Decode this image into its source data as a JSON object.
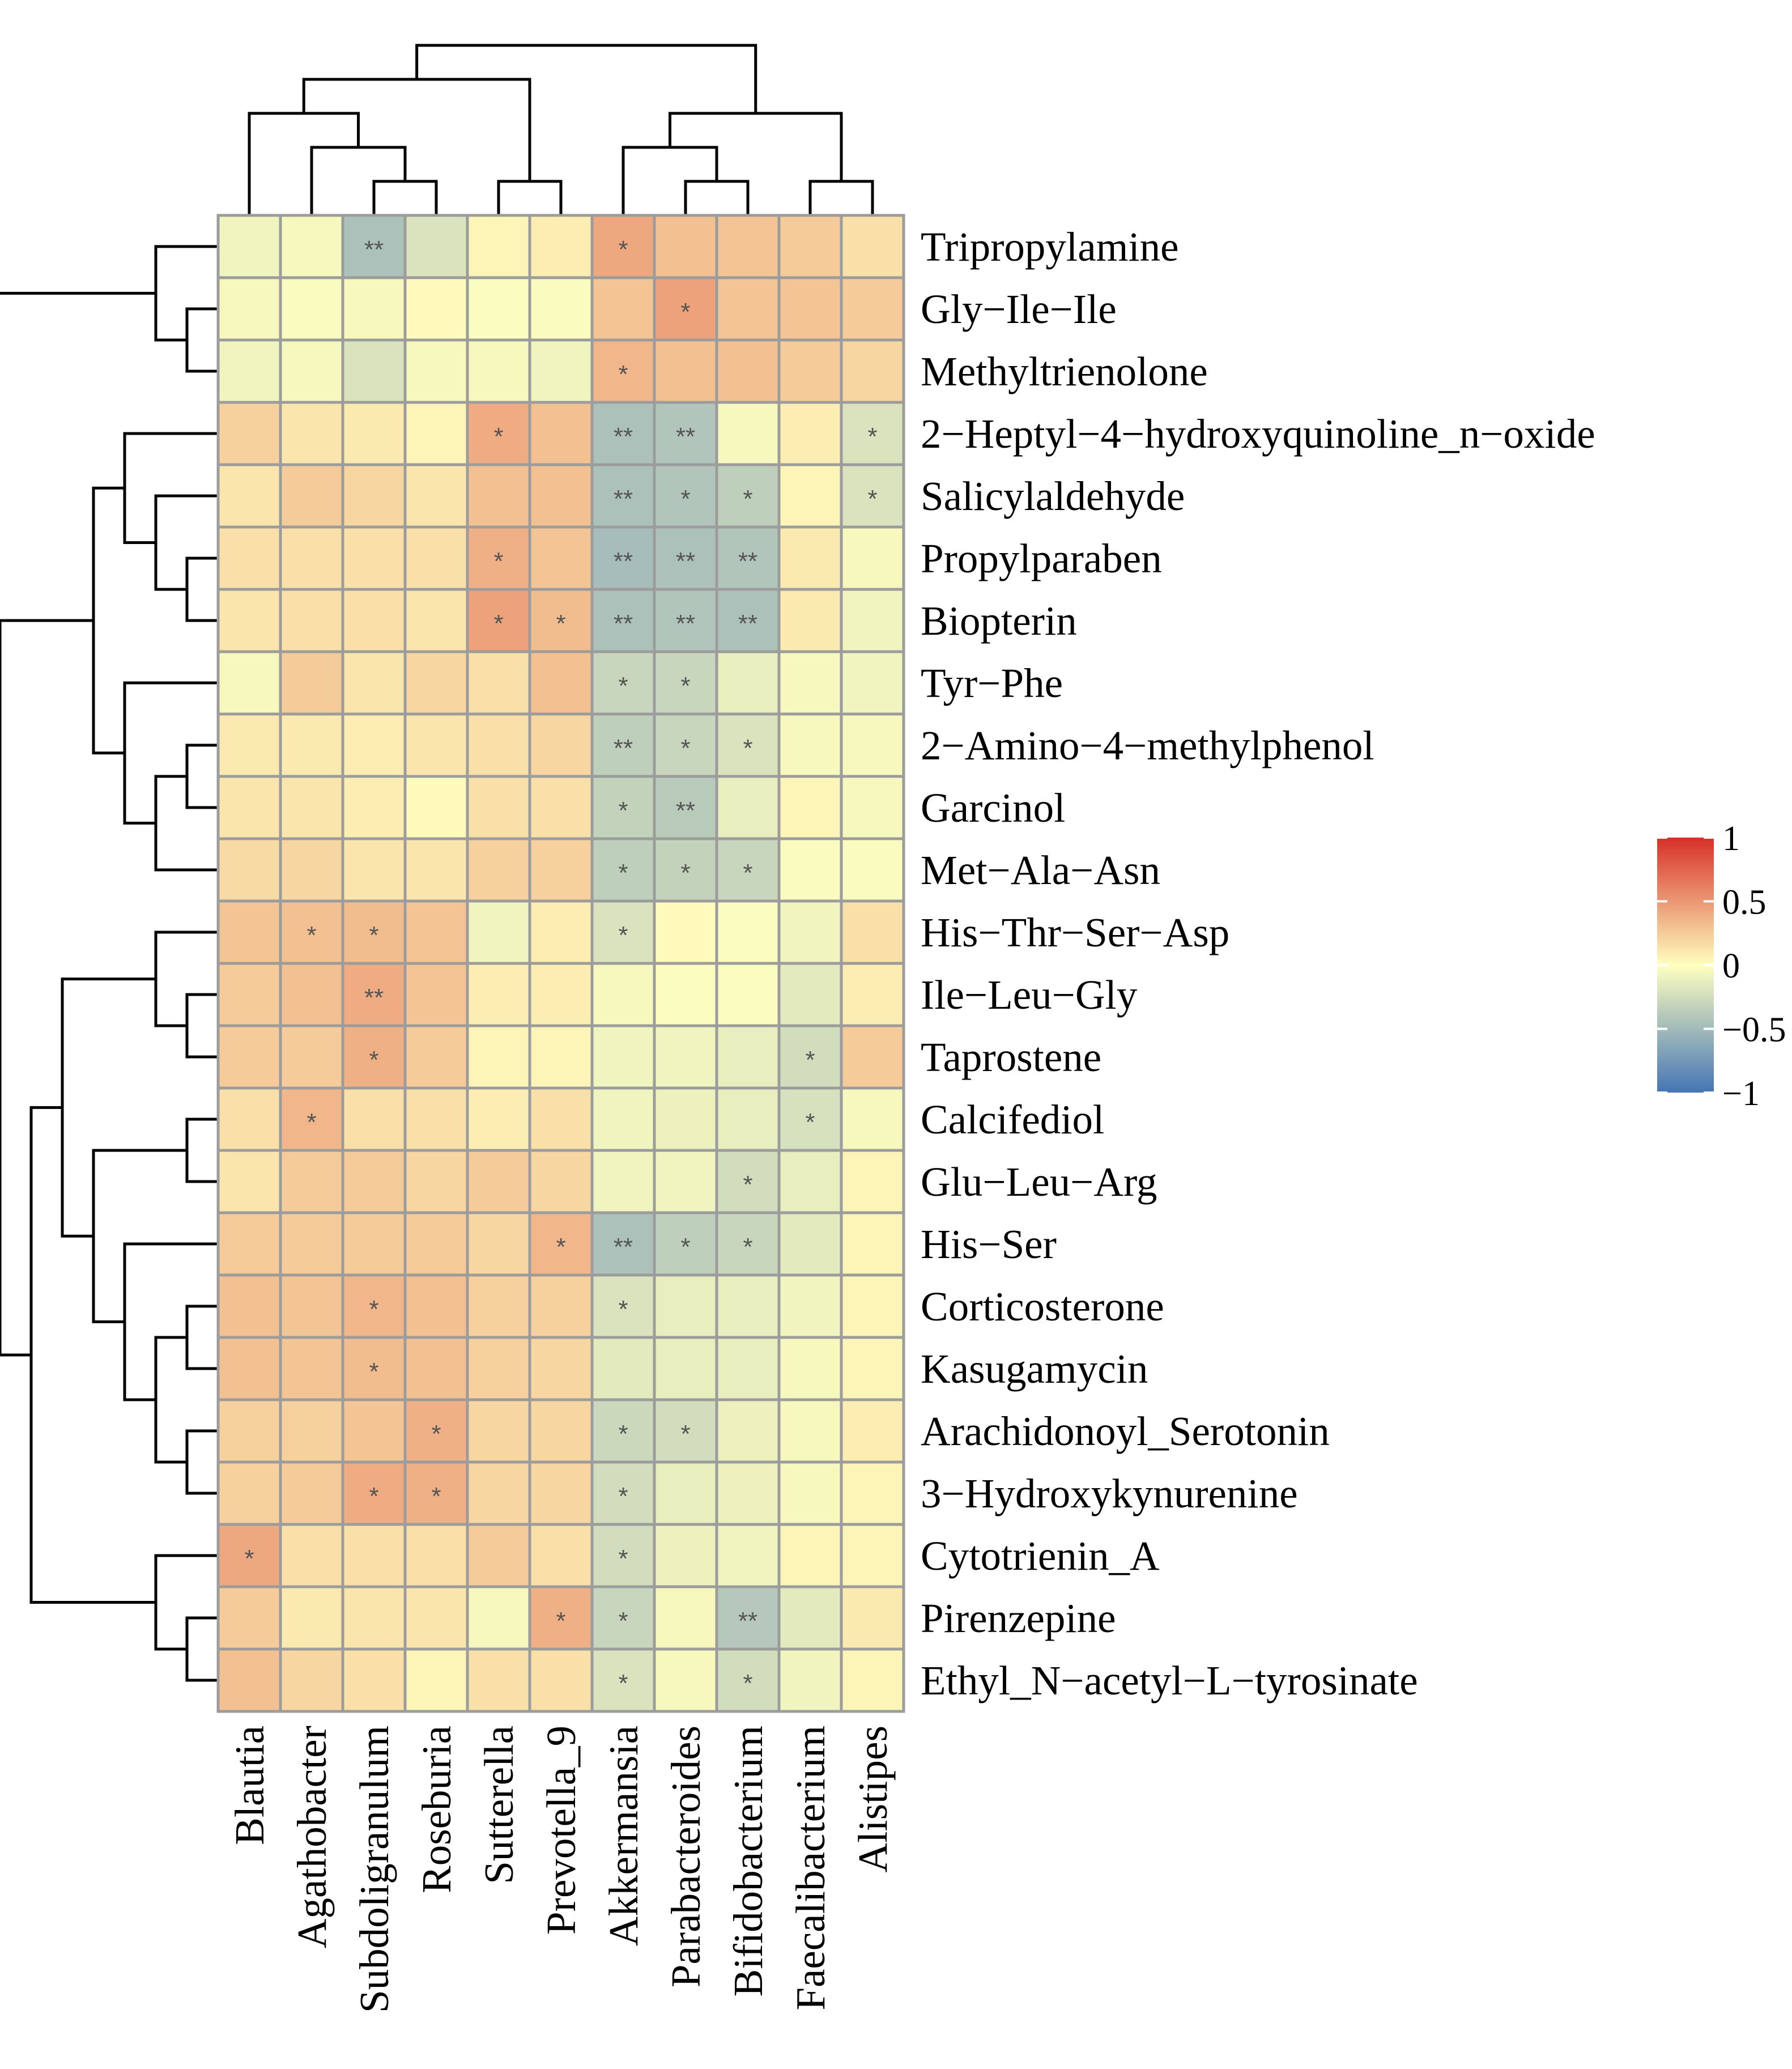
{
  "chart_data": {
    "type": "heatmap",
    "title": "",
    "columns": [
      "Blautia",
      "Agathobacter",
      "Subdoligranulum",
      "Roseburia",
      "Sutterella",
      "Prevotella_9",
      "Akkermansia",
      "Parabacteroides",
      "Bifidobacterium",
      "Faecalibacterium",
      "Alistipes"
    ],
    "rows": [
      "Tripropylamine",
      "Gly−Ile−Ile",
      "Methyltrienolone",
      "2−Heptyl−4−hydroxyquinoline_n−oxide",
      "Salicylaldehyde",
      "Propylparaben",
      "Biopterin",
      "Tyr−Phe",
      "2−Amino−4−methylphenol",
      "Garcinol",
      "Met−Ala−Asn",
      "His−Thr−Ser−Asp",
      "Ile−Leu−Gly",
      "Taprostene",
      "Calcifediol",
      "Glu−Leu−Arg",
      "His−Ser",
      "Corticosterone",
      "Kasugamycin",
      "Arachidonoyl_Serotonin",
      "3−Hydroxykynurenine",
      "Cytotrienin_A",
      "Pirenzepine",
      "Ethyl_N−acetyl−L−tyrosinate"
    ],
    "values": [
      [
        -0.08,
        -0.05,
        -0.45,
        -0.2,
        0.05,
        0.08,
        0.42,
        0.3,
        0.28,
        0.25,
        0.15
      ],
      [
        -0.05,
        -0.03,
        -0.05,
        0.02,
        -0.02,
        -0.03,
        0.28,
        0.45,
        0.28,
        0.28,
        0.25
      ],
      [
        -0.08,
        -0.05,
        -0.2,
        -0.05,
        -0.05,
        -0.08,
        0.35,
        0.3,
        0.3,
        0.25,
        0.2
      ],
      [
        0.22,
        0.12,
        0.1,
        0.05,
        0.4,
        0.3,
        -0.45,
        -0.42,
        -0.05,
        0.08,
        -0.2
      ],
      [
        0.12,
        0.25,
        0.2,
        0.12,
        0.3,
        0.3,
        -0.45,
        -0.42,
        -0.35,
        0.05,
        -0.2
      ],
      [
        0.15,
        0.15,
        0.15,
        0.15,
        0.38,
        0.28,
        -0.48,
        -0.45,
        -0.42,
        0.1,
        -0.05
      ],
      [
        0.12,
        0.15,
        0.15,
        0.12,
        0.45,
        0.32,
        -0.45,
        -0.42,
        -0.45,
        0.1,
        -0.08
      ],
      [
        -0.05,
        0.25,
        0.12,
        0.2,
        0.15,
        0.3,
        -0.3,
        -0.3,
        -0.12,
        -0.05,
        -0.08
      ],
      [
        0.1,
        0.1,
        0.08,
        0.12,
        0.15,
        0.2,
        -0.35,
        -0.3,
        -0.2,
        -0.05,
        -0.05
      ],
      [
        0.12,
        0.12,
        0.08,
        0.02,
        0.15,
        0.15,
        -0.32,
        -0.38,
        -0.12,
        0.05,
        -0.05
      ],
      [
        0.18,
        0.2,
        0.12,
        0.12,
        0.22,
        0.22,
        -0.35,
        -0.32,
        -0.3,
        -0.03,
        -0.03
      ],
      [
        0.28,
        0.3,
        0.32,
        0.28,
        -0.08,
        0.08,
        -0.2,
        0.02,
        -0.02,
        -0.08,
        0.15
      ],
      [
        0.25,
        0.3,
        0.4,
        0.28,
        0.08,
        0.08,
        -0.05,
        -0.02,
        -0.02,
        -0.15,
        0.08
      ],
      [
        0.25,
        0.25,
        0.38,
        0.25,
        0.05,
        0.05,
        -0.08,
        -0.08,
        -0.12,
        -0.25,
        0.25
      ],
      [
        0.15,
        0.35,
        0.15,
        0.15,
        0.08,
        0.15,
        -0.08,
        -0.1,
        -0.12,
        -0.22,
        -0.05
      ],
      [
        0.12,
        0.25,
        0.25,
        0.2,
        0.25,
        0.2,
        -0.08,
        -0.08,
        -0.25,
        -0.12,
        0.05
      ],
      [
        0.25,
        0.25,
        0.25,
        0.25,
        0.2,
        0.35,
        -0.45,
        -0.35,
        -0.3,
        -0.15,
        0.05
      ],
      [
        0.3,
        0.28,
        0.35,
        0.3,
        0.22,
        0.22,
        -0.2,
        -0.12,
        -0.12,
        -0.08,
        0.05
      ],
      [
        0.3,
        0.28,
        0.32,
        0.3,
        0.22,
        0.2,
        -0.15,
        -0.12,
        -0.12,
        -0.05,
        0.05
      ],
      [
        0.22,
        0.22,
        0.28,
        0.38,
        0.2,
        0.2,
        -0.28,
        -0.25,
        -0.1,
        -0.05,
        0.08
      ],
      [
        0.22,
        0.25,
        0.4,
        0.38,
        0.2,
        0.2,
        -0.25,
        -0.12,
        -0.1,
        -0.05,
        0.05
      ],
      [
        0.42,
        0.15,
        0.15,
        0.15,
        0.25,
        0.15,
        -0.25,
        -0.1,
        -0.08,
        0.05,
        0.05
      ],
      [
        0.25,
        0.1,
        0.12,
        0.12,
        -0.05,
        0.38,
        -0.3,
        -0.05,
        -0.4,
        -0.15,
        0.1
      ],
      [
        0.3,
        0.2,
        0.15,
        0.05,
        0.15,
        0.15,
        -0.2,
        -0.05,
        -0.25,
        -0.08,
        0.05
      ]
    ],
    "significance": [
      [
        "",
        "",
        "**",
        "",
        "",
        "",
        "*",
        "",
        "",
        "",
        ""
      ],
      [
        "",
        "",
        "",
        "",
        "",
        "",
        "",
        "*",
        "",
        "",
        ""
      ],
      [
        "",
        "",
        "",
        "",
        "",
        "",
        "*",
        "",
        "",
        "",
        ""
      ],
      [
        "",
        "",
        "",
        "",
        "*",
        "",
        "**",
        "**",
        "",
        "",
        "*"
      ],
      [
        "",
        "",
        "",
        "",
        "",
        "",
        "**",
        "*",
        "*",
        "",
        "*"
      ],
      [
        "",
        "",
        "",
        "",
        "*",
        "",
        "**",
        "**",
        "**",
        "",
        ""
      ],
      [
        "",
        "",
        "",
        "",
        "*",
        "*",
        "**",
        "**",
        "**",
        "",
        ""
      ],
      [
        "",
        "",
        "",
        "",
        "",
        "",
        "*",
        "*",
        "",
        "",
        ""
      ],
      [
        "",
        "",
        "",
        "",
        "",
        "",
        "**",
        "*",
        "*",
        "",
        ""
      ],
      [
        "",
        "",
        "",
        "",
        "",
        "",
        "*",
        "**",
        "",
        "",
        ""
      ],
      [
        "",
        "",
        "",
        "",
        "",
        "",
        "*",
        "*",
        "*",
        "",
        ""
      ],
      [
        "",
        "*",
        "*",
        "",
        "",
        "",
        "*",
        "",
        "",
        "",
        ""
      ],
      [
        "",
        "",
        "**",
        "",
        "",
        "",
        "",
        "",
        "",
        "",
        ""
      ],
      [
        "",
        "",
        "*",
        "",
        "",
        "",
        "",
        "",
        "",
        "*",
        ""
      ],
      [
        "",
        "*",
        "",
        "",
        "",
        "",
        "",
        "",
        "",
        "*",
        ""
      ],
      [
        "",
        "",
        "",
        "",
        "",
        "",
        "",
        "",
        "*",
        "",
        ""
      ],
      [
        "",
        "",
        "",
        "",
        "",
        "*",
        "**",
        "*",
        "*",
        "",
        ""
      ],
      [
        "",
        "",
        "*",
        "",
        "",
        "",
        "*",
        "",
        "",
        "",
        ""
      ],
      [
        "",
        "",
        "*",
        "",
        "",
        "",
        "",
        "",
        "",
        "",
        ""
      ],
      [
        "",
        "",
        "",
        "*",
        "",
        "",
        "*",
        "*",
        "",
        "",
        ""
      ],
      [
        "",
        "",
        "*",
        "*",
        "",
        "",
        "*",
        "",
        "",
        "",
        ""
      ],
      [
        "*",
        "",
        "",
        "",
        "",
        "",
        "*",
        "",
        "",
        "",
        ""
      ],
      [
        "",
        "",
        "",
        "",
        "",
        "*",
        "*",
        "",
        "**",
        "",
        ""
      ],
      [
        "",
        "",
        "",
        "",
        "",
        "",
        "*",
        "",
        "*",
        "",
        ""
      ]
    ],
    "scale": {
      "min": -1,
      "max": 1,
      "colors": [
        "#4575b4",
        "#ffffbf",
        "#d73027"
      ]
    },
    "legend": {
      "ticks": [
        "1",
        "0.5",
        "0",
        "−0.5",
        "−1"
      ],
      "tick_values": [
        1,
        0.5,
        0,
        -0.5,
        -1
      ],
      "position": "right"
    }
  }
}
